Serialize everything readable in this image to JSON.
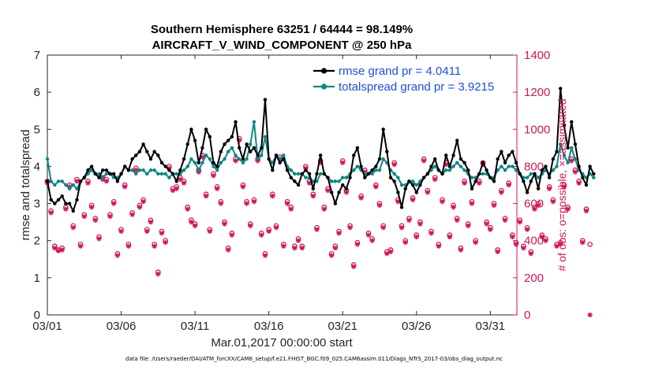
{
  "chart_data": {
    "type": "line",
    "title": "Southern Hemisphere 63251 / 64444 = 98.149%",
    "subtitle": "AIRCRAFT_V_WIND_COMPONENT @ 250 hPa",
    "xlabel": "Mar.01,2017 00:00:00 start",
    "ylabel": "rmse and totalspread",
    "ylabel_right": "# of obs: o=possible, ×=assimilated",
    "xlim": [
      0,
      31.8
    ],
    "ylim": [
      0,
      7
    ],
    "ylim_right": [
      0,
      1400
    ],
    "x_ticks": [
      0,
      5,
      10,
      15,
      20,
      25,
      30
    ],
    "x_tick_labels": [
      "03/01",
      "03/06",
      "03/11",
      "03/16",
      "03/21",
      "03/26",
      "03/31"
    ],
    "y_ticks": [
      0,
      1,
      2,
      3,
      4,
      5,
      6,
      7
    ],
    "y_ticks_right": [
      0,
      200,
      400,
      600,
      800,
      1000,
      1200,
      1400
    ],
    "legend_position": "top-right",
    "series": [
      {
        "name": "rmse",
        "legend_label": "rmse grand pr = 4.0411",
        "color": "#000000",
        "marker": "dot",
        "values": [
          3.6,
          3.1,
          3.0,
          3.1,
          3.2,
          3.0,
          3.0,
          2.8,
          3.1,
          3.6,
          3.7,
          3.9,
          4.0,
          3.8,
          3.7,
          3.9,
          3.9,
          3.8,
          3.8,
          3.6,
          3.8,
          4.0,
          3.9,
          4.2,
          4.3,
          4.4,
          4.6,
          4.4,
          4.2,
          4.4,
          4.3,
          4.1,
          4.0,
          3.9,
          3.8,
          3.6,
          3.9,
          4.2,
          4.6,
          5.0,
          4.7,
          4.1,
          4.5,
          5.0,
          4.8,
          4.1,
          4.0,
          4.4,
          4.6,
          4.7,
          4.8,
          5.2,
          4.5,
          4.2,
          4.6,
          4.4,
          4.5,
          4.3,
          4.5,
          5.8,
          4.2,
          3.9,
          4.3,
          4.1,
          4.2,
          3.9,
          3.7,
          3.6,
          3.5,
          3.8,
          3.9,
          3.8,
          3.4,
          3.8,
          4.3,
          3.8,
          3.7,
          3.3,
          3.0,
          3.3,
          3.5,
          3.4,
          3.7,
          4.3,
          4.5,
          4.0,
          3.7,
          3.8,
          3.9,
          4.0,
          4.2,
          5.0,
          4.4,
          3.7,
          3.6,
          3.3,
          2.9,
          3.4,
          3.6,
          3.5,
          3.3,
          3.5,
          3.7,
          3.8,
          4.0,
          4.2,
          3.9,
          3.8,
          4.3,
          4.0,
          4.3,
          4.7,
          4.2,
          4.1,
          3.9,
          3.4,
          3.6,
          3.8,
          4.1,
          3.9,
          3.7,
          3.6,
          4.2,
          4.4,
          4.1,
          4.3,
          4.4,
          4.1,
          3.8,
          3.6,
          3.3,
          3.6,
          3.8,
          3.4,
          3.9,
          4.0,
          3.7,
          4.2,
          4.4,
          6.1,
          5.1,
          4.5,
          5.2,
          4.6,
          4.0,
          3.7,
          3.5,
          4.0,
          3.8
        ]
      },
      {
        "name": "totalspread",
        "legend_label": "totalspread grand pr = 3.9215",
        "color": "#0f8585",
        "marker": "dot",
        "values": [
          4.2,
          3.6,
          3.5,
          3.6,
          3.6,
          3.5,
          3.4,
          3.5,
          3.4,
          3.6,
          3.7,
          3.8,
          3.9,
          3.8,
          3.8,
          3.7,
          3.8,
          3.8,
          3.7,
          3.7,
          3.8,
          4.0,
          3.9,
          3.9,
          3.8,
          3.9,
          3.9,
          3.8,
          3.9,
          3.9,
          3.8,
          3.8,
          3.8,
          3.7,
          3.8,
          3.8,
          3.8,
          3.9,
          4.0,
          4.2,
          4.1,
          3.9,
          4.1,
          4.3,
          4.2,
          4.0,
          3.9,
          4.1,
          4.2,
          4.4,
          4.5,
          4.3,
          4.2,
          4.1,
          4.2,
          4.6,
          5.2,
          4.2,
          4.3,
          4.8,
          4.2,
          4.1,
          4.3,
          4.2,
          4.3,
          4.0,
          3.9,
          3.8,
          3.8,
          3.8,
          3.7,
          3.7,
          3.6,
          3.6,
          3.8,
          3.8,
          3.7,
          3.6,
          3.6,
          3.6,
          3.7,
          3.7,
          3.8,
          3.9,
          4.0,
          3.9,
          3.8,
          3.8,
          3.8,
          3.9,
          3.9,
          4.2,
          4.1,
          3.9,
          3.8,
          3.7,
          3.5,
          3.5,
          3.6,
          3.6,
          3.5,
          3.6,
          3.7,
          3.8,
          3.9,
          4.0,
          3.9,
          3.8,
          3.9,
          3.9,
          4.0,
          4.1,
          4.0,
          3.9,
          3.8,
          3.7,
          3.7,
          3.8,
          3.8,
          3.8,
          3.7,
          3.7,
          3.9,
          4.0,
          3.9,
          4.0,
          4.0,
          3.9,
          3.8,
          3.7,
          3.7,
          3.8,
          3.8,
          3.7,
          3.8,
          3.9,
          3.8,
          3.9,
          4.0,
          4.6,
          4.3,
          4.1,
          4.5,
          4.2,
          3.9,
          3.8,
          3.7,
          3.8,
          3.7
        ]
      },
      {
        "name": "obs possible",
        "axis": "right",
        "marker": "circle",
        "color": "#d0165a",
        "values": [
          720,
          560,
          370,
          350,
          360,
          580,
          700,
          480,
          730,
          380,
          540,
          720,
          590,
          520,
          420,
          740,
          730,
          540,
          610,
          330,
          460,
          700,
          380,
          550,
          790,
          590,
          620,
          460,
          510,
          380,
          230,
          450,
          400,
          800,
          680,
          690,
          740,
          720,
          580,
          510,
          490,
          780,
          860,
          650,
          460,
          760,
          690,
          610,
          500,
          360,
          440,
          840,
          950,
          700,
          610,
          490,
          620,
          840,
          440,
          330,
          460,
          650,
          480,
          850,
          380,
          610,
          580,
          370,
          410,
          370,
          800,
          720,
          650,
          470,
          830,
          580,
          680,
          330,
          370,
          450,
          830,
          670,
          480,
          270,
          390,
          640,
          780,
          440,
          410,
          700,
          600,
          480,
          340,
          350,
          820,
          620,
          480,
          400,
          520,
          630,
          430,
          500,
          840,
          670,
          450,
          740,
          380,
          620,
          820,
          430,
          590,
          520,
          360,
          720,
          490,
          610,
          400,
          720,
          820,
          500,
          470,
          600,
          350,
          670,
          520,
          710,
          430,
          390,
          510,
          370,
          470,
          340,
          580,
          600,
          430,
          410,
          690,
          620,
          380,
          390,
          700,
          580,
          840,
          780,
          720,
          400,
          570,
          380
        ]
      },
      {
        "name": "obs assimilated",
        "axis": "right",
        "marker": "asterisk",
        "color": "#d0165a",
        "values": [
          710,
          550,
          360,
          345,
          350,
          570,
          690,
          470,
          720,
          370,
          530,
          710,
          580,
          510,
          410,
          730,
          720,
          530,
          600,
          320,
          450,
          690,
          370,
          540,
          780,
          580,
          610,
          450,
          500,
          370,
          220,
          440,
          390,
          790,
          670,
          680,
          730,
          710,
          570,
          500,
          480,
          770,
          850,
          640,
          450,
          750,
          680,
          600,
          490,
          350,
          430,
          830,
          940,
          690,
          600,
          480,
          610,
          830,
          430,
          320,
          450,
          640,
          470,
          840,
          370,
          600,
          570,
          360,
          400,
          360,
          790,
          710,
          640,
          460,
          820,
          570,
          670,
          320,
          360,
          440,
          820,
          660,
          470,
          260,
          380,
          630,
          770,
          430,
          400,
          690,
          590,
          470,
          330,
          340,
          810,
          610,
          470,
          390,
          510,
          620,
          420,
          490,
          830,
          660,
          440,
          730,
          370,
          610,
          810,
          420,
          580,
          510,
          350,
          710,
          480,
          600,
          390,
          710,
          810,
          490,
          460,
          590,
          340,
          660,
          510,
          700,
          420,
          380,
          500,
          360,
          460,
          330,
          570,
          590,
          420,
          400,
          680,
          610,
          370,
          380,
          690,
          570,
          830,
          770,
          710,
          390,
          560,
          0
        ]
      }
    ]
  },
  "footer": {
    "data_file": "data file: /Users/raeder/DAI/ATM_forcXX/CAM6_setup/f.e21.FHIST_BGC.f09_025.CAM6assim.011/Diags_NTrS_2017-03/obs_diag_output.nc"
  },
  "colors": {
    "rmse": "#000000",
    "spread": "#0f8585",
    "obs": "#d0165a",
    "legend_text": "#1f4fd6"
  }
}
